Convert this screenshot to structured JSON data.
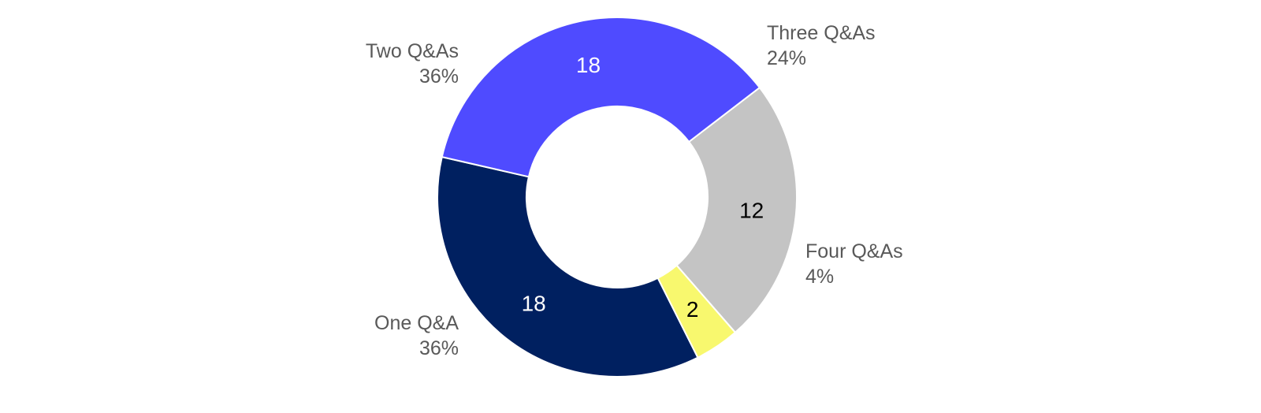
{
  "chart_data": {
    "type": "pie",
    "donut": true,
    "categories": [
      "One Q&A",
      "Two Q&As",
      "Three Q&As",
      "Four Q&As"
    ],
    "values": [
      18,
      18,
      12,
      2
    ],
    "percent_labels": [
      "36%",
      "36%",
      "24%",
      "4%"
    ],
    "colors": [
      "#002060",
      "#4F4BFF",
      "#C4C4C4",
      "#F8F86E"
    ],
    "value_label_colors": [
      "#FFFFFF",
      "#FFFFFF",
      "#000000",
      "#000000"
    ],
    "title": "",
    "legend": "none"
  }
}
